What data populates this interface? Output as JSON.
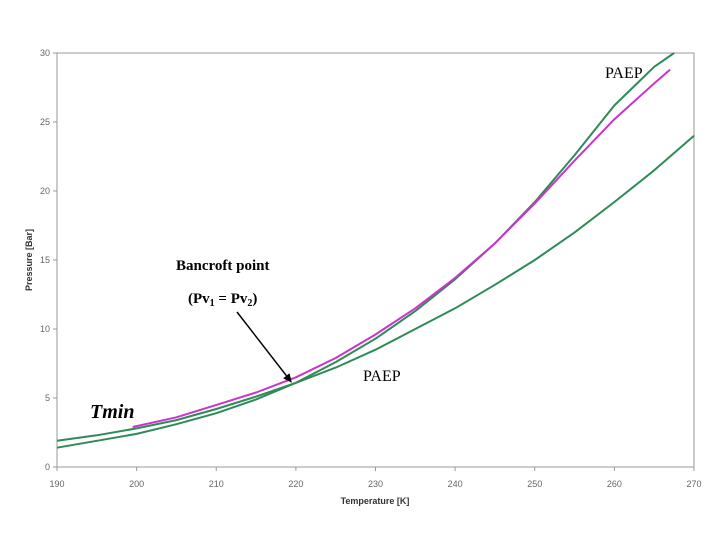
{
  "chart_data": {
    "type": "line",
    "xlabel": "Temperature [K]",
    "ylabel": "Pressure [Bar]",
    "xlim": [
      190,
      270
    ],
    "ylim": [
      0,
      30
    ],
    "xticks": [
      "190",
      "200",
      "210",
      "220",
      "230",
      "240",
      "250",
      "260",
      "270"
    ],
    "yticks": [
      "0",
      "5",
      "10",
      "15",
      "20",
      "25",
      "30"
    ],
    "grid": false,
    "legend": "none",
    "series": [
      {
        "color": "#2e8b57",
        "x": [
          190,
          195,
          200,
          205,
          210,
          215,
          220,
          225,
          230,
          235,
          240,
          245,
          250,
          255,
          260,
          265,
          270
        ],
        "y": [
          1.9,
          2.3,
          2.8,
          3.4,
          4.2,
          5.1,
          6.1,
          7.2,
          8.5,
          10.0,
          11.5,
          13.2,
          15.0,
          17.0,
          19.2,
          21.5,
          24.0
        ]
      },
      {
        "color": "#2e8b57",
        "x": [
          190,
          195,
          200,
          205,
          210,
          215,
          220,
          225,
          230,
          235,
          240,
          245,
          250,
          255,
          260,
          265,
          267.5
        ],
        "y": [
          1.4,
          1.9,
          2.4,
          3.1,
          3.9,
          4.9,
          6.1,
          7.6,
          9.3,
          11.3,
          13.6,
          16.2,
          19.2,
          22.6,
          26.2,
          29.0,
          30.0
        ]
      },
      {
        "color": "#cc33cc",
        "x": [
          199.5,
          205,
          210,
          215,
          220,
          225,
          230,
          235,
          240,
          245,
          250,
          255,
          260,
          265,
          267
        ],
        "y": [
          2.9,
          3.6,
          4.5,
          5.4,
          6.5,
          7.9,
          9.6,
          11.5,
          13.7,
          16.2,
          19.1,
          22.2,
          25.2,
          27.8,
          28.8
        ]
      }
    ],
    "annotations": {
      "paep_top": "PAEP",
      "paep_mid": "PAEP",
      "bancroft": "Bancroft point",
      "pv_prefix": "(Pv",
      "pv_sub1": "1",
      "pv_middle": " = Pv",
      "pv_sub2": "2",
      "pv_suffix": ")",
      "tmin": "Tmin"
    },
    "arrow_target": {
      "x": 219.5,
      "y": 6.1
    }
  }
}
